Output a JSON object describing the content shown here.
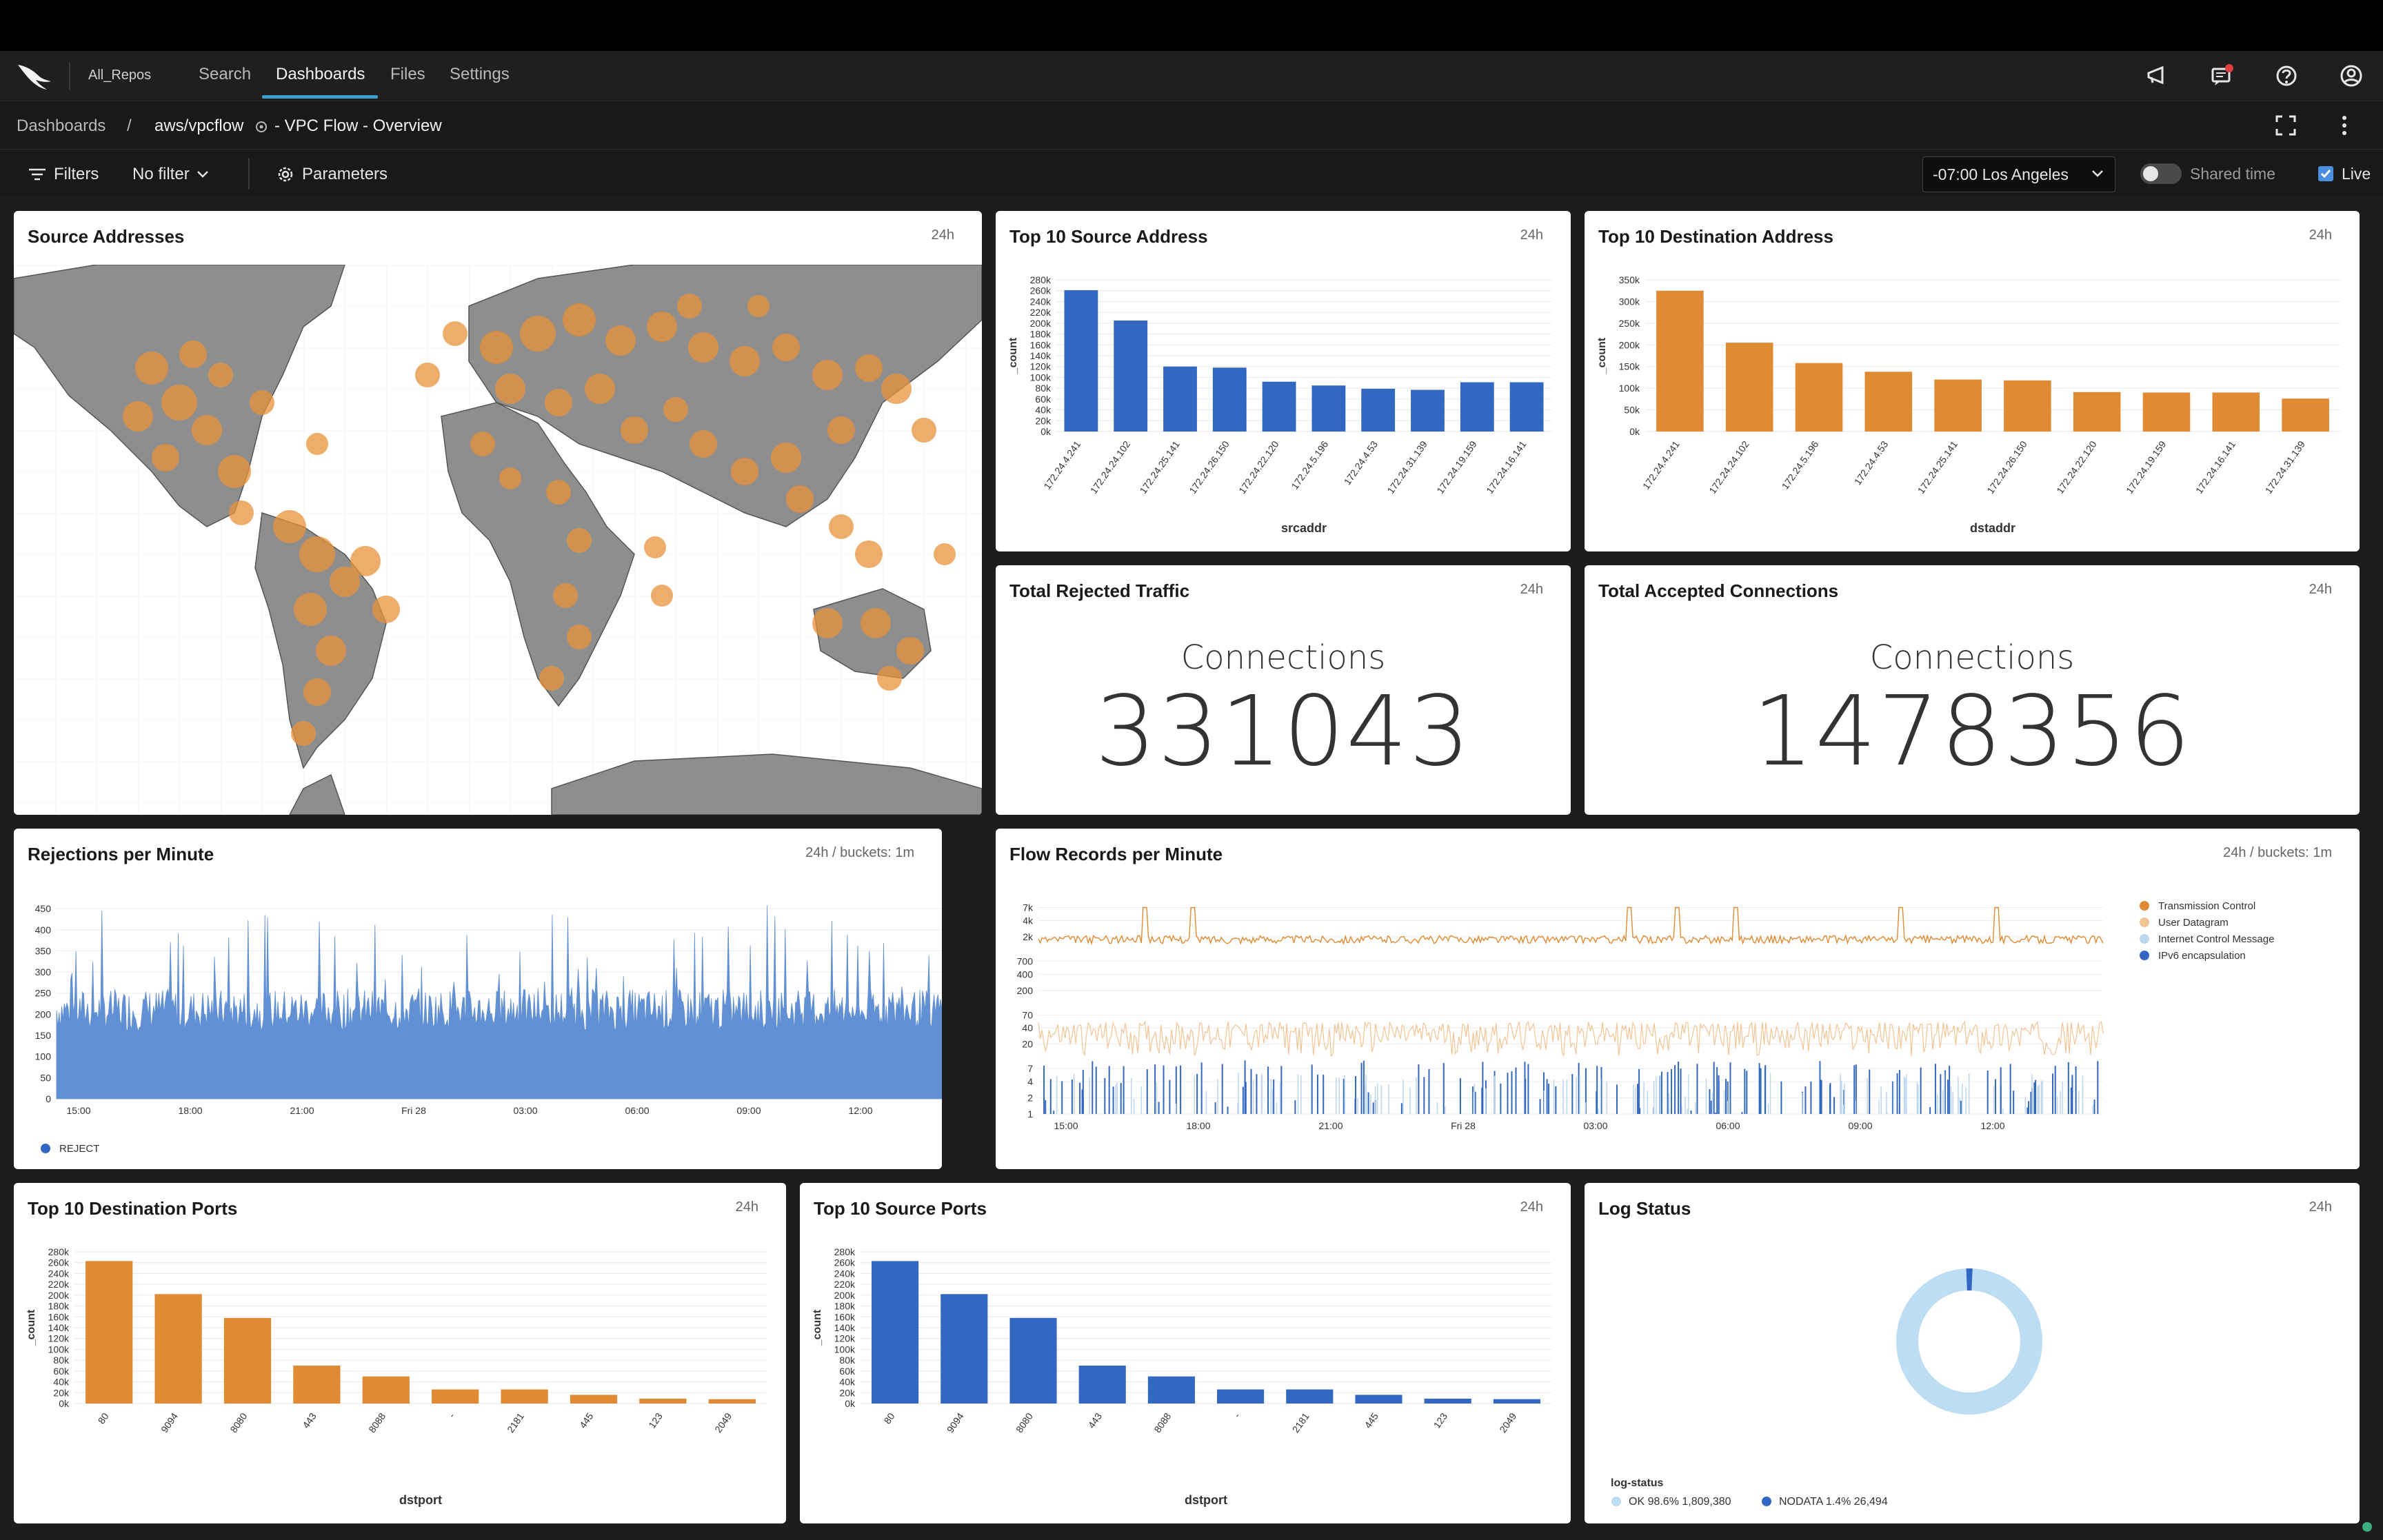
{
  "top_nav": {
    "repo": "All_Repos",
    "items": [
      "Search",
      "Dashboards",
      "Files",
      "Settings"
    ],
    "active": "Dashboards"
  },
  "breadcrumb": {
    "root": "Dashboards",
    "separator": "/",
    "repo": "aws/vpcflow",
    "title": "- VPC Flow - Overview"
  },
  "filterbar": {
    "filters_label": "Filters",
    "filter_value": "No filter",
    "parameters_label": "Parameters",
    "timezone": "-07:00 Los Angeles",
    "shared_time_label": "Shared time",
    "live_label": "Live",
    "live_checked": true
  },
  "colors": {
    "orange": "#E08A33",
    "blue": "#3268C1",
    "map_land": "#8e8e8e"
  },
  "panels": {
    "source_addresses": {
      "title": "Source Addresses",
      "time": "24h"
    },
    "top_src_addr": {
      "title": "Top 10 Source Address",
      "time": "24h"
    },
    "top_dst_addr": {
      "title": "Top 10 Destination Address",
      "time": "24h"
    },
    "rejected": {
      "title": "Total Rejected Traffic",
      "time": "24h",
      "label": "Connections",
      "value": "331043"
    },
    "accepted": {
      "title": "Total Accepted Connections",
      "time": "24h",
      "label": "Connections",
      "value": "1478356"
    },
    "rejections_per_minute": {
      "title": "Rejections per Minute",
      "time": "24h / buckets: 1m"
    },
    "flow_records": {
      "title": "Flow Records per Minute",
      "time": "24h / buckets: 1m"
    },
    "top_dst_ports": {
      "title": "Top 10 Destination Ports",
      "time": "24h"
    },
    "top_src_ports": {
      "title": "Top 10 Source Ports",
      "time": "24h"
    },
    "log_status": {
      "title": "Log Status",
      "time": "24h"
    }
  },
  "chart_data": [
    {
      "id": "top_src_addr",
      "type": "bar",
      "categories": [
        "172.24.4.241",
        "172.24.24.102",
        "172.24.25.141",
        "172.24.26.150",
        "172.24.22.120",
        "172.24.5.196",
        "172.24.4.53",
        "172.24.31.139",
        "172.24.19.159",
        "172.24.16.141"
      ],
      "values": [
        261000,
        205000,
        120000,
        118000,
        92000,
        85000,
        79000,
        77000,
        91000,
        91000
      ],
      "xlabel": "srcaddr",
      "ylabel": "_count",
      "ylim": [
        0,
        280000
      ],
      "yticks": [
        "0k",
        "20k",
        "40k",
        "60k",
        "80k",
        "100k",
        "120k",
        "140k",
        "160k",
        "180k",
        "200k",
        "220k",
        "240k",
        "260k",
        "280k"
      ],
      "color": "#3268C1"
    },
    {
      "id": "top_dst_addr",
      "type": "bar",
      "categories": [
        "172.24.4.241",
        "172.24.24.102",
        "172.24.5.196",
        "172.24.4.53",
        "172.24.25.141",
        "172.24.26.150",
        "172.24.22.120",
        "172.24.19.159",
        "172.24.16.141",
        "172.24.31.139"
      ],
      "values": [
        325000,
        205000,
        158000,
        138000,
        120000,
        118000,
        91000,
        90000,
        90000,
        76000
      ],
      "xlabel": "dstaddr",
      "ylabel": "_count",
      "ylim": [
        0,
        350000
      ],
      "yticks": [
        "0k",
        "50k",
        "100k",
        "150k",
        "200k",
        "250k",
        "300k",
        "350k"
      ],
      "color": "#E08A33"
    },
    {
      "id": "top_dst_ports",
      "type": "bar",
      "categories": [
        "80",
        "9094",
        "8080",
        "443",
        "8088",
        "-",
        "2181",
        "445",
        "123",
        "2049"
      ],
      "values": [
        263000,
        202000,
        158000,
        70000,
        50000,
        26000,
        26000,
        16000,
        9000,
        8000
      ],
      "xlabel": "dstport",
      "ylabel": "_count",
      "ylim": [
        0,
        280000
      ],
      "yticks": [
        "0k",
        "20k",
        "40k",
        "60k",
        "80k",
        "100k",
        "120k",
        "140k",
        "160k",
        "180k",
        "200k",
        "220k",
        "240k",
        "260k",
        "280k"
      ],
      "color": "#E08A33"
    },
    {
      "id": "top_src_ports",
      "type": "bar",
      "categories": [
        "80",
        "9094",
        "8080",
        "443",
        "8088",
        "-",
        "2181",
        "445",
        "123",
        "2049"
      ],
      "values": [
        263000,
        202000,
        158000,
        70000,
        50000,
        26000,
        26000,
        16000,
        9000,
        8000
      ],
      "xlabel": "dstport",
      "ylabel": "_count",
      "ylim": [
        0,
        280000
      ],
      "yticks": [
        "0k",
        "20k",
        "40k",
        "60k",
        "80k",
        "100k",
        "120k",
        "140k",
        "160k",
        "180k",
        "200k",
        "220k",
        "240k",
        "260k",
        "280k"
      ],
      "color": "#3268C1"
    },
    {
      "id": "rejections_per_minute",
      "type": "area",
      "series": [
        {
          "name": "REJECT",
          "typical_range": [
            160,
            260
          ],
          "peaks_max": 460
        }
      ],
      "xticks": [
        "15:00",
        "18:00",
        "21:00",
        "Fri 28",
        "03:00",
        "06:00",
        "09:00",
        "12:00"
      ],
      "yticks": [
        "0",
        "50",
        "100",
        "150",
        "200",
        "250",
        "300",
        "350",
        "400",
        "450"
      ],
      "ylim": [
        0,
        460
      ],
      "color": "#6290D4"
    },
    {
      "id": "flow_records",
      "type": "line",
      "scale": "log",
      "series": [
        {
          "name": "Transmission Control",
          "color": "#E08A33"
        },
        {
          "name": "User Datagram",
          "color": "#F2C494"
        },
        {
          "name": "Internet Control Message",
          "color": "#BCD6F0"
        },
        {
          "name": "IPv6 encapsulation",
          "color": "#3268C1"
        }
      ],
      "xticks": [
        "15:00",
        "18:00",
        "21:00",
        "Fri 28",
        "03:00",
        "06:00",
        "09:00",
        "12:00"
      ],
      "yticks": [
        "1",
        "2",
        "4",
        "7",
        "20",
        "40",
        "70",
        "200",
        "400",
        "700",
        "2k",
        "4k",
        "7k"
      ]
    },
    {
      "id": "log_status",
      "type": "pie",
      "legend_title": "log-status",
      "slices": [
        {
          "name": "OK",
          "percent": 98.6,
          "value": 1809380,
          "label": "OK 98.6% 1,809,380",
          "color": "#BCDDF3"
        },
        {
          "name": "NODATA",
          "percent": 1.4,
          "value": 26494,
          "label": "NODATA 1.4% 26,494",
          "color": "#3268C1"
        }
      ]
    }
  ]
}
